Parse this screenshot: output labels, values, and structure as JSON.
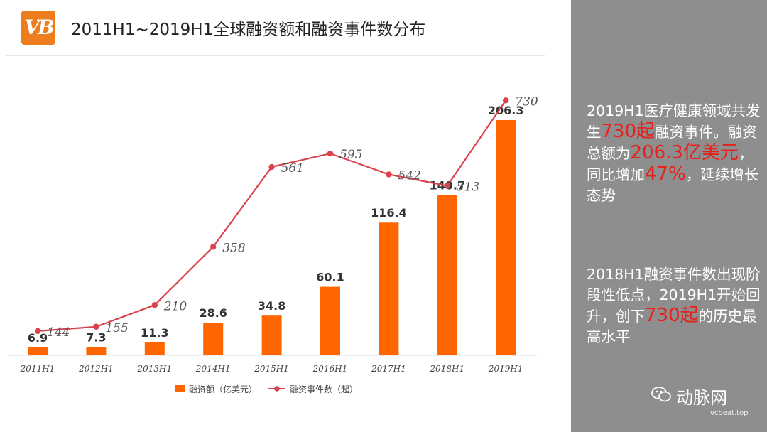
{
  "logo_text": "VB",
  "title": "2011H1~2019H1全球融资额和融资事件数分布",
  "chart_data": {
    "type": "bar+line",
    "categories": [
      "2011H1",
      "2012H1",
      "2013H1",
      "2014H1",
      "2015H1",
      "2016H1",
      "2017H1",
      "2018H1",
      "2019H1"
    ],
    "series": [
      {
        "name": "融资额（亿美元）",
        "type": "bar",
        "values": [
          6.9,
          7.3,
          11.3,
          28.6,
          34.8,
          60.1,
          116.4,
          140.7,
          206.3
        ],
        "labels": [
          "6.9",
          "7.3",
          "11.3",
          "28.6",
          "34.8",
          "60.1",
          "116.4",
          "140.7",
          "206.3"
        ],
        "color": "#ff6600"
      },
      {
        "name": "融资事件数（起）",
        "type": "line",
        "values": [
          144,
          155,
          210,
          358,
          561,
          595,
          542,
          513,
          730
        ],
        "labels": [
          "144",
          "155",
          "210",
          "358",
          "561",
          "595",
          "542",
          "513",
          "730"
        ],
        "color": "#d9434e"
      }
    ],
    "bar_axis_max": 230,
    "line_axis_range": [
      0,
      850
    ],
    "legend_position": "bottom"
  },
  "side": {
    "p1": [
      {
        "t": "2019H1医疗健康领域共发生"
      },
      {
        "t": "730起",
        "hl": true
      },
      {
        "t": "融资事件。融资总额为"
      },
      {
        "t": "206.3亿美元",
        "hl": true
      },
      {
        "t": "，同比增加"
      },
      {
        "t": "47%",
        "hl": true
      },
      {
        "t": "，延续增长态势"
      }
    ],
    "p2": [
      {
        "t": "2018H1融资事件数出现阶段性低点，2019H1开始回升，创下"
      },
      {
        "t": "730起",
        "hl": true
      },
      {
        "t": "的历史最高水平"
      }
    ]
  },
  "watermark": {
    "name": "动脉网",
    "url": "vcbeat.top"
  }
}
